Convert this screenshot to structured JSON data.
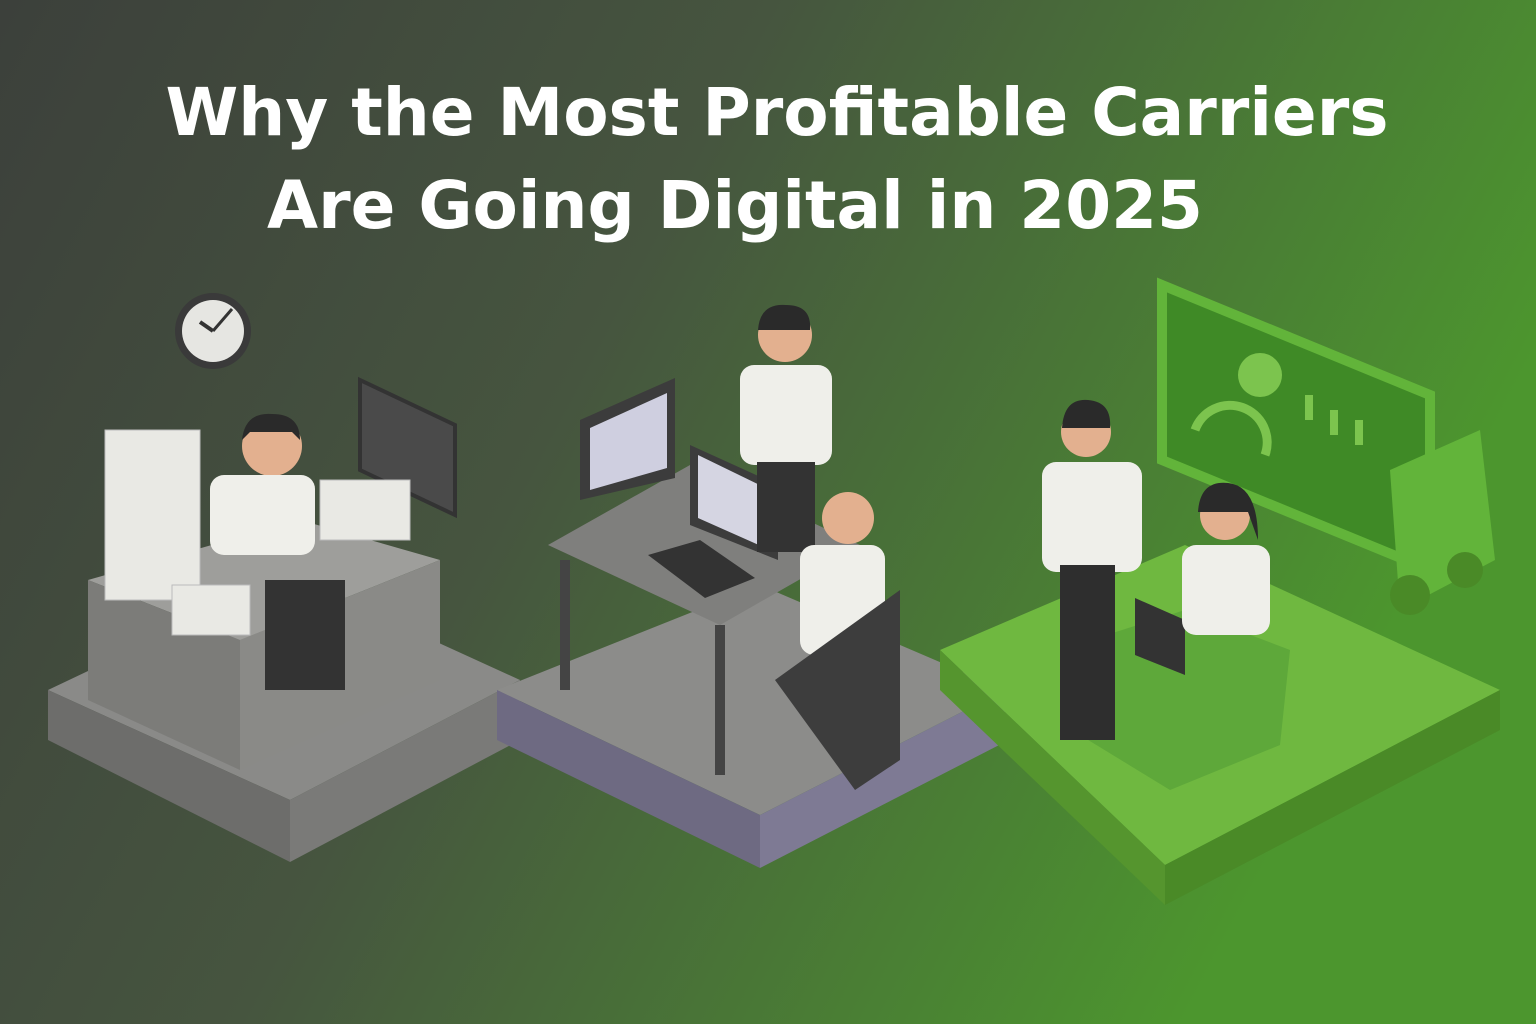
{
  "title": {
    "lines": [
      "Why the Most Profitable Carriers",
      "Are Going Digital in 2025"
    ]
  }
}
